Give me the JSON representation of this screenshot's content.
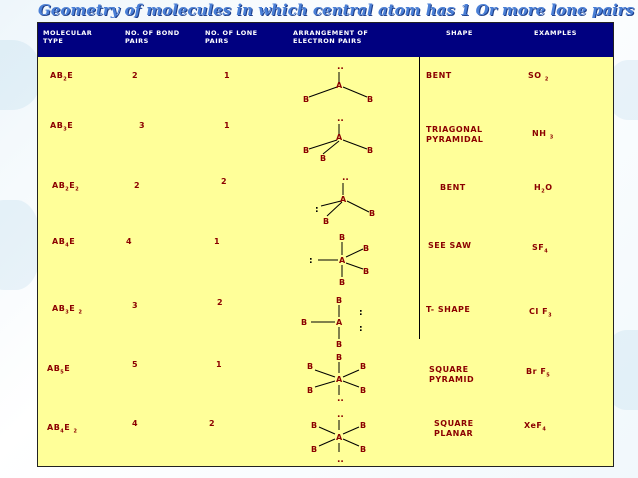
{
  "title": "Geometry of molecules in which central atom has 1 Or more  lone pairs",
  "headers": {
    "type": "MOLECULAR TYPE",
    "bond": "NO. OF BOND PAIRS",
    "lone": "NO. OF LONE PAIRS",
    "arr": "ARRANGEMENT OF ELECTRON PAIRS",
    "shape": "SHAPE",
    "ex": "EXAMPLES"
  },
  "rows": [
    {
      "type": "AB2E",
      "bond": "2",
      "lone": "1",
      "shape": "BENT",
      "example": "SO 2"
    },
    {
      "type": "AB3E",
      "bond": "3",
      "lone": "1",
      "shape": "TRIAGONAL PYRAMIDAL",
      "example": "NH 3"
    },
    {
      "type": "AB2E2",
      "bond": "2",
      "lone": "2",
      "shape": "BENT",
      "example": "H2O"
    },
    {
      "type": "AB4E",
      "bond": "4",
      "lone": "1",
      "shape": "SEE SAW",
      "example": "SF4"
    },
    {
      "type": "AB3E 2",
      "bond": "3",
      "lone": "2",
      "shape": "T- SHAPE",
      "example": "CI F3"
    },
    {
      "type": "AB5E",
      "bond": "5",
      "lone": "1",
      "shape": "SQUARE PYRAMID",
      "example": "Br F5"
    },
    {
      "type": "AB4E 2",
      "bond": "4",
      "lone": "2",
      "shape": "SQUARE PLANAR",
      "example": "XeF4"
    }
  ],
  "atoms": {
    "central": "A",
    "ligand": "B",
    "lone_pair": ":"
  },
  "colors": {
    "header_bg": "#000080",
    "table_bg": "#ffff99",
    "text": "#8b0000",
    "title": "#4a7fd6"
  }
}
